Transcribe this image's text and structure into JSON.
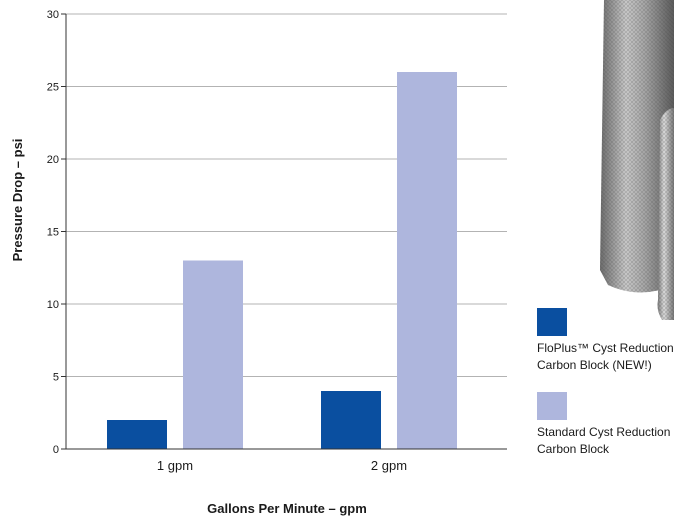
{
  "chart_data": {
    "type": "bar",
    "title": "",
    "xlabel": "Gallons Per Minute – gpm",
    "ylabel": "Pressure Drop – psi",
    "ylim": [
      0,
      30
    ],
    "yticks": [
      "0",
      "5",
      "10",
      "15",
      "20",
      "25",
      "30"
    ],
    "categories": [
      "1 gpm",
      "2 gpm"
    ],
    "series": [
      {
        "name": "FloPlus™ Cyst Reduction Carbon Block (NEW!)",
        "values": [
          2,
          4
        ],
        "color": "#0a4fa0"
      },
      {
        "name": "Standard Cyst Reduction Carbon Block",
        "values": [
          13,
          26
        ],
        "color": "#aeb6dd"
      }
    ],
    "grid": true,
    "legend_position": "right"
  },
  "legend": {
    "items": [
      {
        "line1": "FloPlus™ Cyst Reduction",
        "line2": "Carbon Block (NEW!)",
        "color": "#0a4fa0"
      },
      {
        "line1": "Standard Cyst Reduction",
        "line2": "Carbon Block",
        "color": "#aeb6dd"
      }
    ]
  },
  "photo": {
    "icon": "carbon-block-filter-cartridges-image"
  }
}
